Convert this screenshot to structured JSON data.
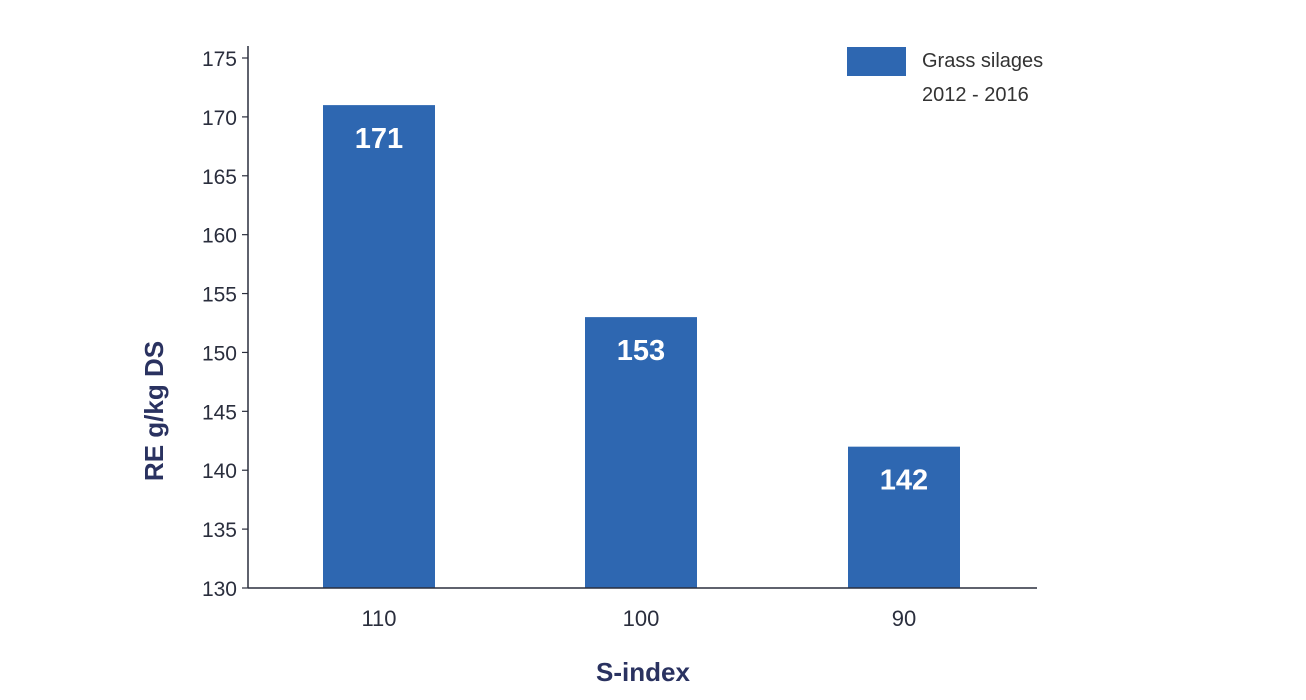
{
  "chart_data": {
    "type": "bar",
    "categories": [
      "110",
      "100",
      "90"
    ],
    "values": [
      171,
      153,
      142
    ],
    "data_labels": [
      "171",
      "153",
      "142"
    ],
    "title": "",
    "xlabel": "S-index",
    "ylabel": "RE g/kg DS",
    "ylim": [
      130,
      175
    ],
    "yticks": [
      130,
      135,
      140,
      145,
      150,
      155,
      160,
      165,
      170,
      175
    ],
    "grid": false,
    "legend": {
      "position": "top-right",
      "lines": [
        "Grass silages",
        "2012 - 2016"
      ]
    },
    "bar_color": "#2e67b1",
    "axis_color": "#2a2e3d"
  }
}
